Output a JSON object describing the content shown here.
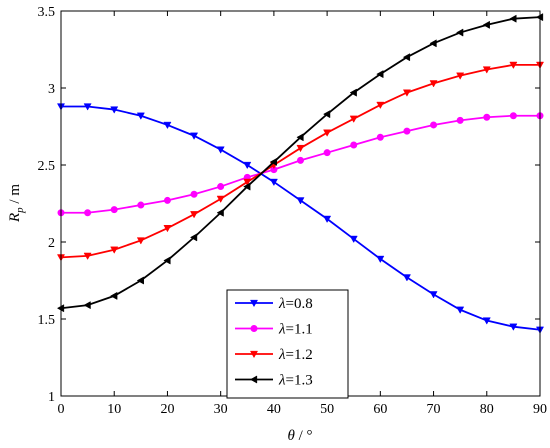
{
  "chart_data": {
    "type": "line",
    "xlabel_var": "θ",
    "xlabel_unit": " / °",
    "ylabel_var": "R",
    "ylabel_sub": "p",
    "ylabel_unit": " / m",
    "xlim": [
      0,
      90
    ],
    "ylim": [
      1,
      3.5
    ],
    "xticks": [
      0,
      10,
      20,
      30,
      40,
      50,
      60,
      70,
      80,
      90
    ],
    "yticks": [
      1,
      1.5,
      2,
      2.5,
      3,
      3.5
    ],
    "ytick_labels": [
      "1",
      "1.5",
      "2",
      "2.5",
      "3",
      "3.5"
    ],
    "grid": false,
    "legend_position": "bottom-center",
    "x": [
      0,
      5,
      10,
      15,
      20,
      25,
      30,
      35,
      40,
      45,
      50,
      55,
      60,
      65,
      70,
      75,
      80,
      85,
      90
    ],
    "series": [
      {
        "name_var": "λ",
        "name_value": "=0.8",
        "color": "#0000ff",
        "marker": "down-triangle",
        "values": [
          2.88,
          2.88,
          2.86,
          2.82,
          2.76,
          2.69,
          2.6,
          2.5,
          2.39,
          2.27,
          2.15,
          2.02,
          1.89,
          1.77,
          1.66,
          1.56,
          1.49,
          1.45,
          1.43
        ]
      },
      {
        "name_var": "λ",
        "name_value": "=1.1",
        "color": "#ff00ff",
        "marker": "circle",
        "values": [
          2.19,
          2.19,
          2.21,
          2.24,
          2.27,
          2.31,
          2.36,
          2.42,
          2.47,
          2.53,
          2.58,
          2.63,
          2.68,
          2.72,
          2.76,
          2.79,
          2.81,
          2.82,
          2.82
        ]
      },
      {
        "name_var": "λ",
        "name_value": "=1.2",
        "color": "#ff0000",
        "marker": "down-triangle",
        "values": [
          1.9,
          1.91,
          1.95,
          2.01,
          2.09,
          2.18,
          2.28,
          2.39,
          2.5,
          2.61,
          2.71,
          2.8,
          2.89,
          2.97,
          3.03,
          3.08,
          3.12,
          3.15,
          3.15
        ]
      },
      {
        "name_var": "λ",
        "name_value": "=1.3",
        "color": "#000000",
        "marker": "left-triangle",
        "values": [
          1.57,
          1.59,
          1.65,
          1.75,
          1.88,
          2.03,
          2.19,
          2.36,
          2.52,
          2.68,
          2.83,
          2.97,
          3.09,
          3.2,
          3.29,
          3.36,
          3.41,
          3.45,
          3.46
        ]
      }
    ]
  }
}
